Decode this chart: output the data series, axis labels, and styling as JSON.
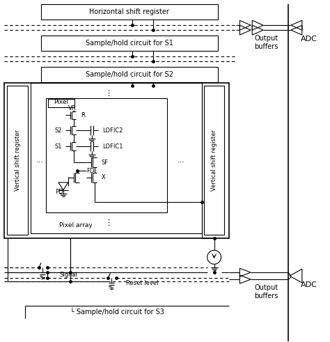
{
  "bg_color": "#ffffff",
  "figsize": [
    4.74,
    4.91
  ],
  "dpi": 100,
  "labels": {
    "horiz_shift_reg": "Horizontal shift register",
    "sh_s1": "Sample/hold circuit for S1",
    "sh_s2": "Sample/hold circuit for S2",
    "sh_s3": "Sample/hold circuit for S3",
    "pixel_array": "Pixel array",
    "pixel": "Pixel",
    "vert_shift_reg_left": "Vertical shift register",
    "vert_shift_reg_right": "Vertical shift register",
    "output_buffers_top": "Output\nbuffers",
    "output_buffers_bot": "Output\nbuffers",
    "adc_top": "ADC",
    "adc_bot": "ADC",
    "vr": "VR",
    "r_label": "R",
    "s2": "S2",
    "s1": "S1",
    "lofic2": "LOFIC2",
    "lofic1": "LOFIC1",
    "sf": "SF",
    "fd": "FD",
    "x_label": "X",
    "pd": "PD",
    "signal": "Signal",
    "reset_level": "Reset level"
  }
}
